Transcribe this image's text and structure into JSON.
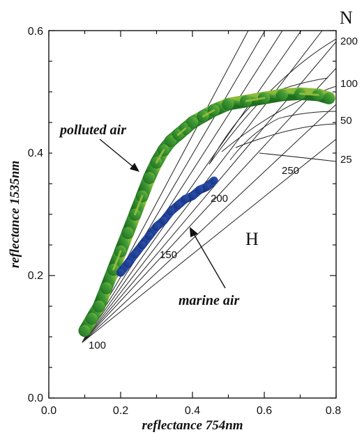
{
  "chart_data": {
    "type": "scatter",
    "title": "",
    "xlabel": "reflectance 754nm",
    "ylabel": "reflectance 1535nm",
    "xlim": [
      0.0,
      0.8
    ],
    "ylim": [
      0.0,
      0.6
    ],
    "x_ticks": [
      "0.0",
      "0.2",
      "0.4",
      "0.6",
      "0.8"
    ],
    "y_ticks": [
      "0.0",
      "0.2",
      "0.4",
      "0.6"
    ],
    "grid": false,
    "annotations": {
      "polluted": "polluted air",
      "marine": "marine air",
      "n_letter": "N",
      "h_letter": "H"
    },
    "n_labels": [
      "200",
      "100",
      "50",
      "25"
    ],
    "h_grid_labels": [
      "250",
      "200",
      "150",
      "100"
    ],
    "series": [
      {
        "name": "polluted air",
        "color": "#2f8a2f",
        "points": [
          [
            0.1,
            0.11
          ],
          [
            0.12,
            0.13
          ],
          [
            0.14,
            0.15
          ],
          [
            0.16,
            0.18
          ],
          [
            0.18,
            0.21
          ],
          [
            0.2,
            0.24
          ],
          [
            0.22,
            0.27
          ],
          [
            0.24,
            0.3
          ],
          [
            0.26,
            0.33
          ],
          [
            0.28,
            0.36
          ],
          [
            0.3,
            0.385
          ],
          [
            0.32,
            0.405
          ],
          [
            0.34,
            0.42
          ],
          [
            0.36,
            0.43
          ],
          [
            0.38,
            0.44
          ],
          [
            0.4,
            0.45
          ],
          [
            0.43,
            0.46
          ],
          [
            0.46,
            0.47
          ],
          [
            0.5,
            0.48
          ],
          [
            0.55,
            0.485
          ],
          [
            0.6,
            0.49
          ],
          [
            0.65,
            0.495
          ],
          [
            0.7,
            0.497
          ],
          [
            0.75,
            0.495
          ],
          [
            0.78,
            0.49
          ]
        ]
      },
      {
        "name": "marine air",
        "color": "#1f3f9a",
        "points": [
          [
            0.2,
            0.205
          ],
          [
            0.22,
            0.22
          ],
          [
            0.24,
            0.235
          ],
          [
            0.26,
            0.25
          ],
          [
            0.28,
            0.265
          ],
          [
            0.3,
            0.28
          ],
          [
            0.32,
            0.29
          ],
          [
            0.34,
            0.305
          ],
          [
            0.36,
            0.315
          ],
          [
            0.38,
            0.325
          ],
          [
            0.4,
            0.33
          ],
          [
            0.42,
            0.34
          ],
          [
            0.44,
            0.345
          ],
          [
            0.46,
            0.355
          ]
        ]
      }
    ]
  }
}
